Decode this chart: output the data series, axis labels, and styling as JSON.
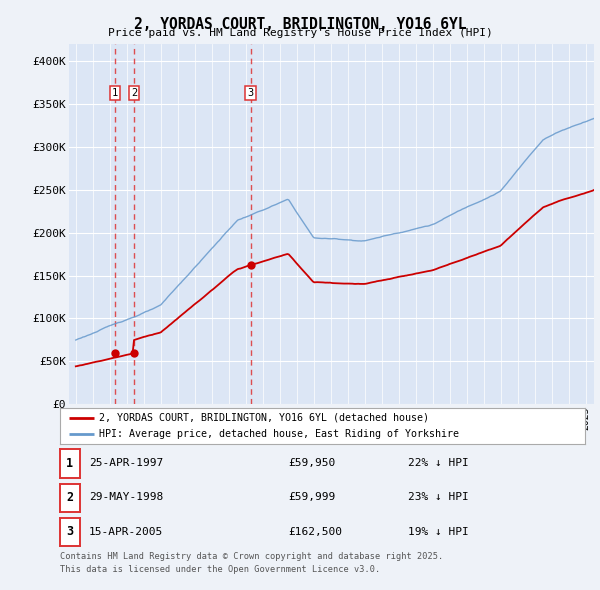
{
  "title": "2, YORDAS COURT, BRIDLINGTON, YO16 6YL",
  "subtitle": "Price paid vs. HM Land Registry's House Price Index (HPI)",
  "legend_line1": "2, YORDAS COURT, BRIDLINGTON, YO16 6YL (detached house)",
  "legend_line2": "HPI: Average price, detached house, East Riding of Yorkshire",
  "footer1": "Contains HM Land Registry data © Crown copyright and database right 2025.",
  "footer2": "This data is licensed under the Open Government Licence v3.0.",
  "transactions": [
    {
      "num": 1,
      "date": "25-APR-1997",
      "price": "£59,950",
      "pct": "22% ↓ HPI",
      "x_year": 1997.3
    },
    {
      "num": 2,
      "date": "29-MAY-1998",
      "price": "£59,999",
      "pct": "23% ↓ HPI",
      "x_year": 1998.42
    },
    {
      "num": 3,
      "date": "15-APR-2005",
      "price": "£162,500",
      "pct": "19% ↓ HPI",
      "x_year": 2005.29
    }
  ],
  "transaction_values": [
    59950,
    59999,
    162500
  ],
  "background_color": "#eef2f8",
  "plot_bg_color": "#dce6f5",
  "grid_color": "#ffffff",
  "red_line_color": "#cc0000",
  "blue_line_color": "#6699cc",
  "dashed_line_color": "#dd3333",
  "ylim": [
    0,
    420000
  ],
  "yticks": [
    0,
    50000,
    100000,
    150000,
    200000,
    250000,
    300000,
    350000,
    400000
  ],
  "ytick_labels": [
    "£0",
    "£50K",
    "£100K",
    "£150K",
    "£200K",
    "£250K",
    "£300K",
    "£350K",
    "£400K"
  ],
  "xlim_start": 1994.6,
  "xlim_end": 2025.5
}
